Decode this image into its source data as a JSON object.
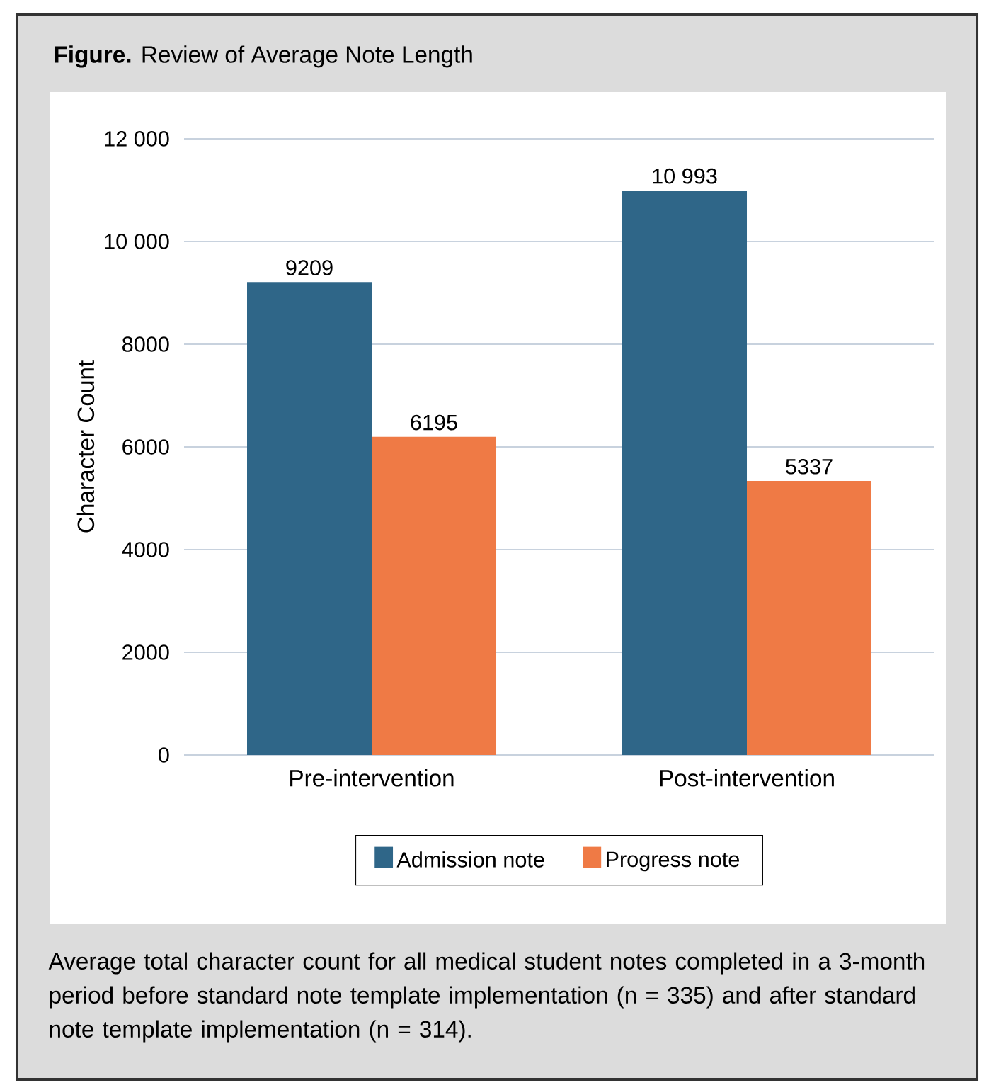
{
  "chart_data": {
    "type": "bar",
    "title": "**Figure.** Review of Average Note Length",
    "ylabel": "Character Count",
    "categories": [
      "Pre-intervention",
      "Post-intervention"
    ],
    "series": [
      {
        "name": "Admission note",
        "color": "#2f6688",
        "values": [
          9209,
          10993
        ],
        "value_labels": [
          "9209",
          "10 993"
        ]
      },
      {
        "name": "Progress note",
        "color": "#ef7a45",
        "values": [
          6195,
          5337
        ],
        "value_labels": [
          "6195",
          "5337"
        ]
      }
    ],
    "ylim": [
      0,
      12000
    ],
    "yticks": [
      0,
      2000,
      4000,
      6000,
      8000,
      {
        "value": 10000,
        "label": "10 000"
      },
      {
        "value": 12000,
        "label": "12 000"
      }
    ],
    "grid": "y",
    "legend": "bottom",
    "annotations": [
      "Average total character count for all medical student notes completed in a 3-month period before standard note template implementation (n = 335) and after standard note template implementation (n = 314)."
    ]
  }
}
